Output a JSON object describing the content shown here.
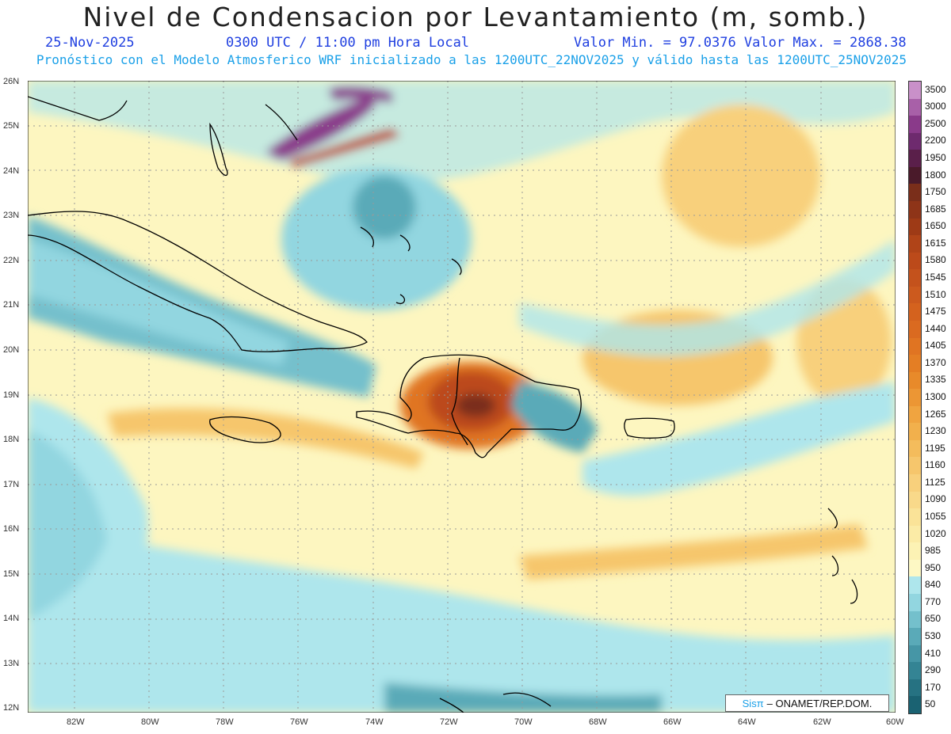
{
  "header": {
    "title": "Nivel de Condensacion por Levantamiento (m, somb.)",
    "date": "25-Nov-2025",
    "time": "0300 UTC / 11:00 pm Hora Local",
    "min_max": "Valor Min. = 97.0376   Valor Max. = 2868.38",
    "subtitle": "Pronóstico con el Modelo Atmosferico WRF inicializado a las 1200UTC_22NOV2025 y válido hasta las  1200UTC_25NOV2025"
  },
  "axes": {
    "x_ticks": [
      "82W",
      "80W",
      "78W",
      "76W",
      "74W",
      "72W",
      "70W",
      "68W",
      "66W",
      "64W",
      "62W",
      "60W"
    ],
    "y_ticks": [
      "26N",
      "25N",
      "24N",
      "23N",
      "22N",
      "21N",
      "20N",
      "19N",
      "18N",
      "17N",
      "16N",
      "15N",
      "14N",
      "13N",
      "12N"
    ],
    "lon_range": [
      -83.2,
      -60.0
    ],
    "lat_range": [
      11.9,
      26.0
    ]
  },
  "colorbar": {
    "labels": [
      "3500",
      "3000",
      "2500",
      "2200",
      "1950",
      "1800",
      "1750",
      "1685",
      "1650",
      "1615",
      "1580",
      "1545",
      "1510",
      "1475",
      "1440",
      "1405",
      "1370",
      "1335",
      "1300",
      "1265",
      "1230",
      "1195",
      "1160",
      "1125",
      "1090",
      "1055",
      "1020",
      "985",
      "950",
      "840",
      "770",
      "650",
      "530",
      "410",
      "290",
      "170",
      "50"
    ],
    "colors": [
      "#c990c9",
      "#a860a8",
      "#8a3a8a",
      "#6e2a6e",
      "#5a1f4a",
      "#4a1a2a",
      "#7a2e1a",
      "#8e3418",
      "#9e3a16",
      "#b04418",
      "#bc4a1a",
      "#c4521c",
      "#cc5a1e",
      "#d4621e",
      "#da6a20",
      "#e07422",
      "#e47e24",
      "#e88a2a",
      "#ec9634",
      "#f0a440",
      "#f2b04c",
      "#f4bc5c",
      "#f6c66c",
      "#f8d07c",
      "#f9d98a",
      "#fae398",
      "#fbeba6",
      "#fcf2b4",
      "#fdf8c4",
      "#aee6ec",
      "#92d6e0",
      "#74c0cc",
      "#5aaab8",
      "#4696a6",
      "#348494",
      "#267282",
      "#1a6272"
    ]
  },
  "credit": {
    "brand": "Sisπ",
    "text": "– ONAMET/REP.DOM."
  }
}
